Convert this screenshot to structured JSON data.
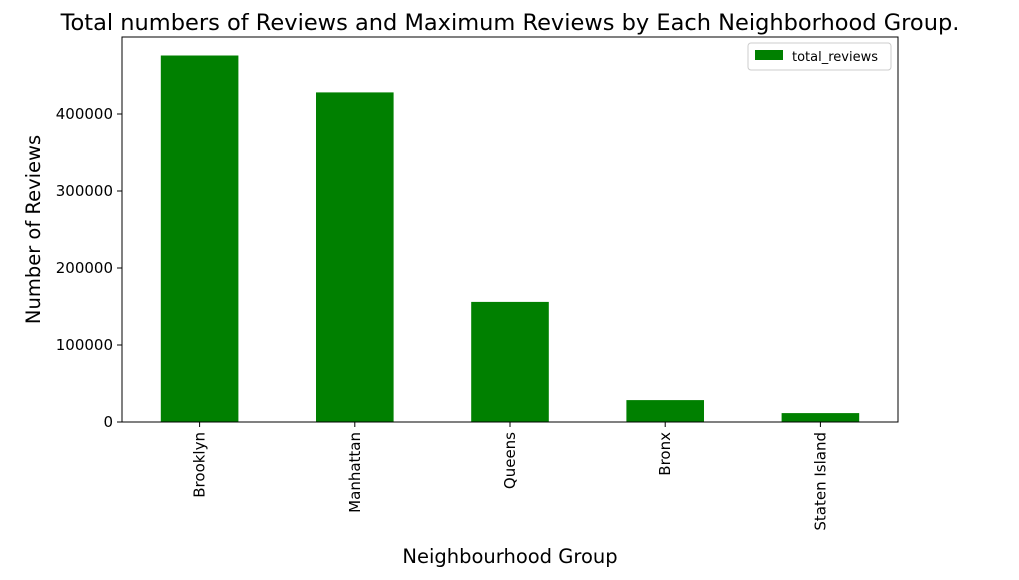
{
  "chart_data": {
    "type": "bar",
    "title": "Total numbers of Reviews and Maximum Reviews by Each Neighborhood Group.",
    "xlabel": "Neighbourhood Group",
    "ylabel": "Number of Reviews",
    "categories": [
      "Brooklyn",
      "Manhattan",
      "Queens",
      "Bronx",
      "Staten Island"
    ],
    "series": [
      {
        "name": "total_reviews",
        "values": [
          476000,
          428000,
          156000,
          28400,
          11500
        ],
        "color": "#008000"
      }
    ],
    "ylim": [
      0,
      500000
    ],
    "yticks": [
      0,
      100000,
      200000,
      300000,
      400000
    ],
    "ytick_labels": [
      "0",
      "100000",
      "200000",
      "300000",
      "400000"
    ],
    "legend_position": "top-right",
    "grid": false
  }
}
